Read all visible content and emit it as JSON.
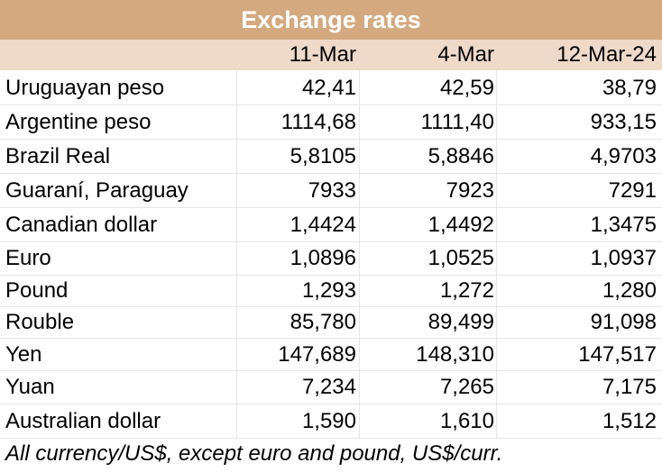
{
  "title": "Exchange rates",
  "columns": [
    "",
    "11-Mar",
    "4-Mar",
    "12-Mar-24"
  ],
  "rows": [
    {
      "currency": "Uruguayan peso",
      "values": [
        "42,41",
        "42,59",
        "38,79"
      ]
    },
    {
      "currency": "Argentine peso",
      "values": [
        "1114,68",
        "1111,40",
        "933,15"
      ]
    },
    {
      "currency": "Brazil Real",
      "values": [
        "5,8105",
        "5,8846",
        "4,9703"
      ]
    },
    {
      "currency": "Guaraní, Paraguay",
      "values": [
        "7933",
        "7923",
        "7291"
      ]
    },
    {
      "currency": "Canadian dollar",
      "values": [
        "1,4424",
        "1,4492",
        "1,3475"
      ]
    },
    {
      "currency": "Euro",
      "values": [
        "1,0896",
        "1,0525",
        "1,0937"
      ]
    },
    {
      "currency": "Pound",
      "values": [
        "1,293",
        "1,272",
        "1,280"
      ]
    },
    {
      "currency": "Rouble",
      "values": [
        "85,780",
        "89,499",
        "91,098"
      ]
    },
    {
      "currency": "Yen",
      "values": [
        "147,689",
        "148,310",
        "147,517"
      ]
    },
    {
      "currency": "Yuan",
      "values": [
        "7,234",
        "7,265",
        "7,175"
      ]
    },
    {
      "currency": "Australian dollar",
      "values": [
        "1,590",
        "1,610",
        "1,512"
      ]
    }
  ],
  "footnote": "All currency/US$, except euro and pound, US$/curr.",
  "colors": {
    "title_background": "#d4a97f",
    "header_background": "#efd9c9",
    "title_text": "#ffffff"
  }
}
